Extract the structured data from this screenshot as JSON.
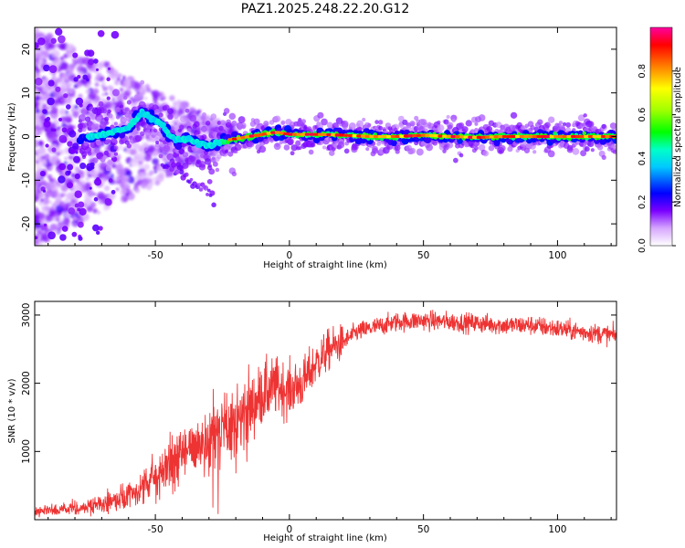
{
  "title": "PAZ1.2025.248.22.20.G12",
  "chart_data": [
    {
      "type": "heatmap",
      "title": "PAZ1.2025.248.22.20.G12",
      "xlabel": "Height of straight line (km)",
      "ylabel": "Frequency (Hz)",
      "xlim": [
        -95,
        122
      ],
      "ylim": [
        -25,
        25
      ],
      "xticks": [
        -50,
        0,
        50,
        100
      ],
      "yticks": [
        -20,
        -10,
        0,
        10,
        20
      ],
      "description_series": [
        {
          "name": "Dominant frequency ridge",
          "x": [
            -75,
            -70,
            -65,
            -60,
            -55,
            -52,
            -48,
            -45,
            -42,
            -38,
            -35,
            -30,
            -25,
            -20,
            -15,
            -10,
            -5,
            0,
            10,
            20,
            30,
            40,
            50,
            60,
            70,
            80,
            90,
            100,
            110,
            120
          ],
          "y": [
            0,
            0.5,
            1,
            2,
            5.5,
            4.5,
            3,
            0.5,
            -1,
            -0.5,
            -1.5,
            -2,
            -1,
            -0.5,
            0,
            0.5,
            1,
            0.5,
            0.5,
            0.3,
            0,
            0,
            0.3,
            0,
            -0.2,
            0,
            0,
            0,
            0,
            0
          ]
        }
      ],
      "colorbar": {
        "label": "Normalized spectral amplitude",
        "range": [
          0,
          1
        ],
        "ticks": [
          0.0,
          0.2,
          0.4,
          0.6,
          0.8
        ],
        "tick_labels": [
          "0.0",
          "0.2",
          "0.4",
          "0.6",
          "0.8"
        ]
      }
    },
    {
      "type": "line",
      "xlabel": "Height of straight line (km)",
      "ylabel": "SNR (10 * v/v)",
      "xlim": [
        -95,
        122
      ],
      "ylim": [
        0,
        3200
      ],
      "xticks": [
        -50,
        0,
        50,
        100
      ],
      "yticks": [
        1000,
        2000,
        3000
      ],
      "series": [
        {
          "name": "SNR",
          "color": "#ee3333",
          "x": [
            -95,
            -80,
            -70,
            -60,
            -55,
            -50,
            -45,
            -40,
            -35,
            -30,
            -25,
            -20,
            -15,
            -10,
            -5,
            0,
            5,
            10,
            15,
            20,
            25,
            30,
            35,
            40,
            50,
            60,
            70,
            80,
            90,
            100,
            110,
            122
          ],
          "y": [
            120,
            150,
            230,
            330,
            450,
            620,
            800,
            950,
            1080,
            1200,
            1300,
            1450,
            1600,
            1850,
            1950,
            1900,
            2000,
            2300,
            2500,
            2600,
            2750,
            2800,
            2850,
            2900,
            2920,
            2900,
            2880,
            2850,
            2850,
            2800,
            2750,
            2700
          ]
        }
      ]
    }
  ]
}
